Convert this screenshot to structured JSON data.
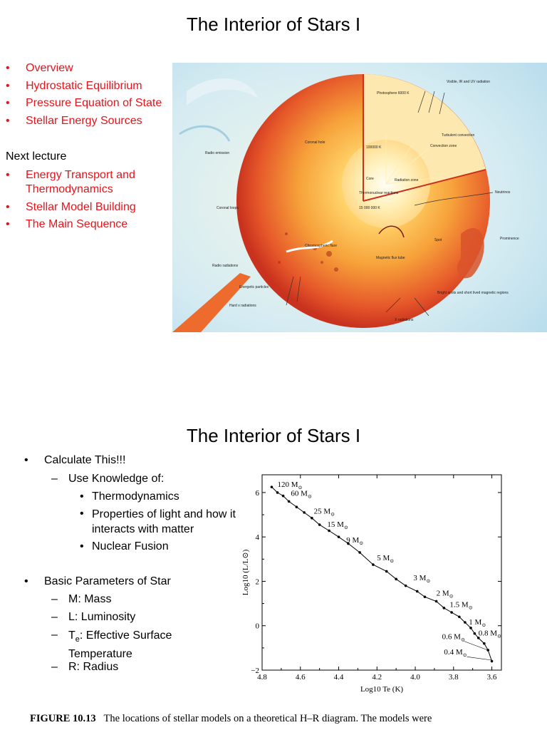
{
  "slide1": {
    "title": "The Interior of Stars I",
    "topics": [
      "Overview",
      "Hydrostatic Equilibrium",
      "Pressure Equation of State",
      "Stellar Energy Sources"
    ],
    "next_label": "Next lecture",
    "next_topics": [
      "Energy Transport and Thermodynamics",
      "Stellar Model Building",
      "The Main Sequence"
    ],
    "bullet_color": "#e8131b",
    "illustration_labels": {
      "visible": "Visible, IR and UV radiation",
      "photosphere": "Photosphere 6000 K",
      "turbulent": "Turbulent convection",
      "convection": "Convection zone",
      "radio_emission": "Radio emission",
      "coronal_hole": "Coronal hole",
      "temp_core_outer": "100000 K",
      "core": "Core",
      "radiation_zone": "Radiation zone",
      "thermonuclear": "Thermonuclear reactions",
      "core_temp": "15 000 000 K",
      "neutrinos": "Neutrinos",
      "coronal_loops": "Coronal loops",
      "prominence": "Prominence",
      "chromospheric": "Chromospheric flare",
      "magnetic": "Magnetic flux tube",
      "spot": "Spot",
      "radio_radiations": "Radio radiations",
      "energetic": "Energetic particles",
      "bright_spots": "Bright spots and short lived magnetic regions",
      "hard_x": "Hard x radiations",
      "x_rad": "X radiations"
    }
  },
  "slide2": {
    "title": "The Interior of Stars I",
    "calc": "Calculate This!!!",
    "use_knowledge": "Use Knowledge of:",
    "knowledge": [
      "Thermodynamics",
      "Properties of light and how it interacts with matter",
      "Nuclear Fusion"
    ],
    "basic": "Basic Parameters of Star",
    "params": {
      "m": "M: Mass",
      "l": "L: Luminosity",
      "te_symbol": "T",
      "te_sub": "e",
      "te_text": ": Effective Surface Temperature",
      "r": "R: Radius"
    },
    "caption_label": "FIGURE 10.13",
    "caption_text": "The locations of stellar models on a theoretical H–R diagram. The models were"
  },
  "chart_data": {
    "type": "line",
    "xlabel": "Log10 Te (K)",
    "ylabel": "Log10 (L/L⊙)",
    "xlim": [
      4.8,
      3.55
    ],
    "ylim": [
      -2,
      6.8
    ],
    "xticks": [
      "4.8",
      "4.6",
      "4.4",
      "4.2",
      "4.0",
      "3.8",
      "3.6"
    ],
    "yticks": [
      "−2",
      "0",
      "2",
      "4",
      "6"
    ],
    "sun_symbol": "⊙",
    "series": [
      {
        "x": [
          4.75,
          4.72,
          4.69,
          4.66,
          4.62,
          4.58,
          4.54,
          4.5,
          4.45,
          4.4,
          4.35,
          4.29,
          4.22,
          4.15,
          4.1,
          4.05,
          3.99,
          3.95,
          3.89,
          3.85,
          3.81,
          3.77,
          3.74,
          3.71,
          3.69,
          3.67,
          3.64,
          3.62,
          3.6
        ],
        "y": [
          6.25,
          6.0,
          5.85,
          5.6,
          5.35,
          5.1,
          4.85,
          4.55,
          4.28,
          4.0,
          3.7,
          3.3,
          2.75,
          2.45,
          2.1,
          1.8,
          1.55,
          1.3,
          1.1,
          0.8,
          0.6,
          0.4,
          0.15,
          -0.1,
          -0.35,
          -0.55,
          -0.8,
          -1.1,
          -1.6
        ]
      }
    ],
    "annotations": [
      {
        "label": "120 M",
        "x": 4.72,
        "y": 6.25
      },
      {
        "label": "60 M",
        "x": 4.65,
        "y": 5.85
      },
      {
        "label": "25 M",
        "x": 4.53,
        "y": 5.05
      },
      {
        "label": "15 M",
        "x": 4.46,
        "y": 4.45
      },
      {
        "label": "9 M",
        "x": 4.36,
        "y": 3.75
      },
      {
        "label": "5 M",
        "x": 4.2,
        "y": 2.95
      },
      {
        "label": "3 M",
        "x": 4.01,
        "y": 2.05
      },
      {
        "label": "2 M",
        "x": 3.89,
        "y": 1.35
      },
      {
        "label": "1.5 M",
        "x": 3.82,
        "y": 0.85
      },
      {
        "label": "1 M",
        "x": 3.72,
        "y": 0.05
      },
      {
        "label": "0.8 M",
        "x": 3.67,
        "y": -0.45
      },
      {
        "label": "0.6 M",
        "x": 3.86,
        "y": -0.6
      },
      {
        "label": "0.4 M",
        "x": 3.85,
        "y": -1.3
      }
    ]
  }
}
